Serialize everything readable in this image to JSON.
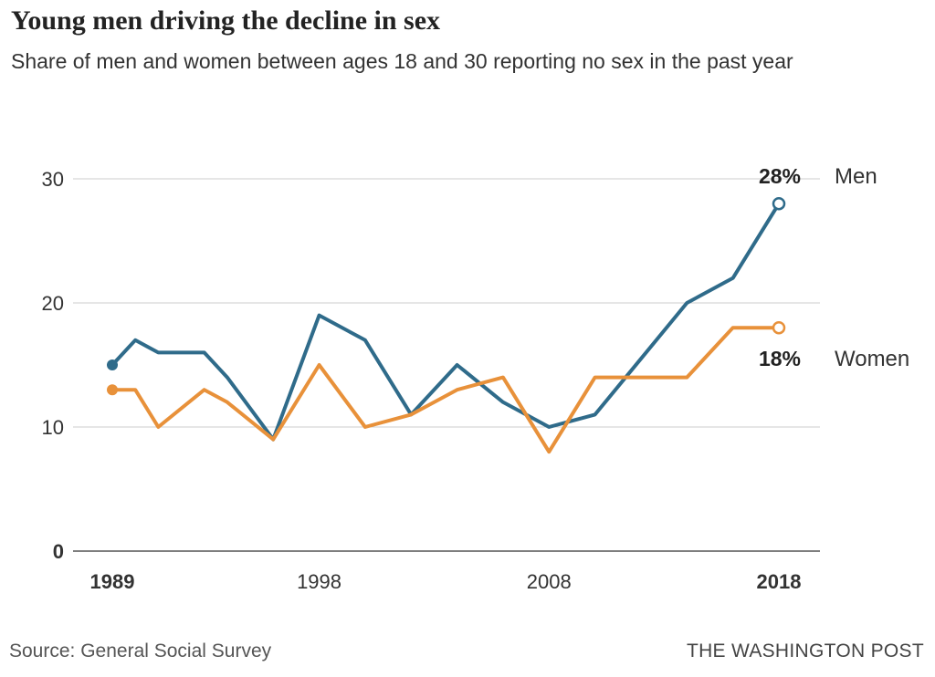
{
  "chart_data": {
    "type": "line",
    "title": "Young men driving the decline in sex",
    "subtitle": "Share of men and women between ages 18 and 30 reporting no sex in the past year",
    "x_range": [
      1989,
      2018
    ],
    "ylim": [
      0,
      30
    ],
    "y_ticks": [
      {
        "value": 0,
        "label": "0",
        "bold": true
      },
      {
        "value": 10,
        "label": "10",
        "bold": false
      },
      {
        "value": 20,
        "label": "20",
        "bold": false
      },
      {
        "value": 30,
        "label": "30",
        "bold": false
      }
    ],
    "x_ticks": [
      {
        "value": 1989,
        "label": "1989",
        "bold": true
      },
      {
        "value": 1998,
        "label": "1998",
        "bold": false
      },
      {
        "value": 2008,
        "label": "2008",
        "bold": false
      },
      {
        "value": 2018,
        "label": "2018",
        "bold": true
      }
    ],
    "grid": true,
    "series": [
      {
        "name": "Men",
        "color": "#2f6b8a",
        "end_label": "28%",
        "x": [
          1989,
          1990,
          1991,
          1993,
          1994,
          1996,
          1998,
          2000,
          2002,
          2004,
          2006,
          2008,
          2010,
          2012,
          2014,
          2016,
          2018
        ],
        "y": [
          15,
          17,
          16,
          16,
          14,
          9,
          19,
          17,
          11,
          15,
          12,
          10,
          11,
          15.5,
          20,
          22,
          28
        ]
      },
      {
        "name": "Women",
        "color": "#e8913a",
        "end_label": "18%",
        "x": [
          1989,
          1990,
          1991,
          1993,
          1994,
          1996,
          1998,
          2000,
          2002,
          2004,
          2006,
          2008,
          2010,
          2012,
          2014,
          2016,
          2018
        ],
        "y": [
          13,
          13,
          10,
          13,
          12,
          9,
          15,
          10,
          11,
          13,
          14,
          8,
          14,
          14,
          14,
          18,
          18
        ]
      }
    ]
  },
  "footer": {
    "source": "Source: General Social Survey",
    "brand": "THE WASHINGTON POST"
  }
}
